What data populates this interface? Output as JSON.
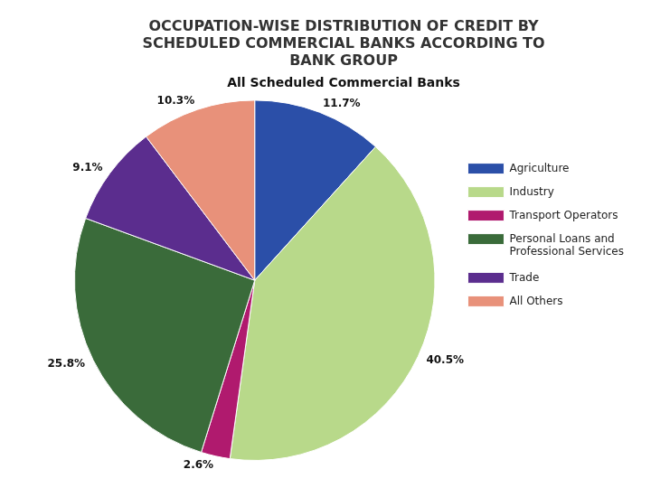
{
  "chart_data": {
    "type": "pie",
    "title": "OCCUPATION-WISE DISTRIBUTION OF CREDIT BY\nSCHEDULED COMMERCIAL BANKS ACCORDING TO\nBANK GROUP",
    "subtitle": "All Scheduled Commercial Banks",
    "categories": [
      "Agriculture",
      "Industry",
      "Transport Operators",
      "Personal Loans and\nProfessional Services",
      "Trade",
      "All Others"
    ],
    "values": [
      11.7,
      40.5,
      2.6,
      25.8,
      9.1,
      10.3
    ],
    "value_labels": [
      "11.7%",
      "40.5%",
      "2.6%",
      "25.8%",
      "9.1%",
      "10.3%"
    ],
    "colors": [
      "#2b4fa8",
      "#b8d98a",
      "#b01a6e",
      "#3a6b3a",
      "#5b2d8e",
      "#e8917a"
    ],
    "data_labels": true,
    "legend": "right"
  }
}
